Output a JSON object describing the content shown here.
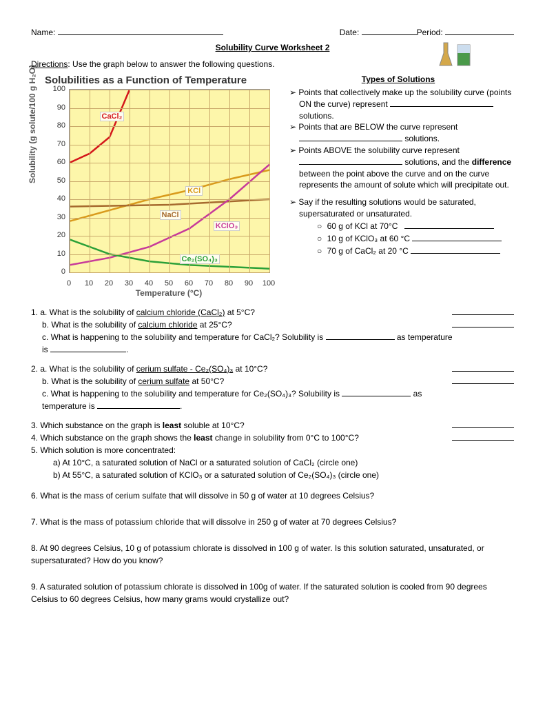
{
  "header": {
    "name_label": "Name:",
    "date_label": "Date:",
    "period_label": "Period:"
  },
  "title": "Solubility Curve Worksheet 2",
  "directions": {
    "label": "Directions",
    "text": ": Use the graph below to answer the following questions."
  },
  "chart": {
    "title": "Solubilities as a Function of Temperature",
    "ylabel": "Solubility (g solute/100 g H₂O)",
    "xlabel": "Temperature (°C)",
    "xlim": [
      0,
      100
    ],
    "ylim": [
      0,
      100
    ],
    "xticks": [
      0,
      10,
      20,
      30,
      40,
      50,
      60,
      70,
      80,
      90,
      100
    ],
    "yticks": [
      0,
      10,
      20,
      30,
      40,
      50,
      60,
      70,
      80,
      90,
      100
    ],
    "bg": "#fdf6aa",
    "grid": "#c9a86a",
    "series": [
      {
        "name": "CaCl2",
        "label": "CaCl₂",
        "color": "#d4161a",
        "width": 2.5,
        "points": [
          [
            0,
            60
          ],
          [
            10,
            65
          ],
          [
            20,
            74
          ],
          [
            30,
            100
          ]
        ],
        "label_pos": [
          15,
          88
        ]
      },
      {
        "name": "KCl",
        "label": "KCl",
        "color": "#d99a1c",
        "width": 2.5,
        "points": [
          [
            0,
            28
          ],
          [
            20,
            34
          ],
          [
            40,
            40
          ],
          [
            60,
            45
          ],
          [
            80,
            51
          ],
          [
            100,
            56
          ]
        ],
        "label_pos": [
          58,
          47
        ]
      },
      {
        "name": "NaCl",
        "label": "NaCl",
        "color": "#a66a2e",
        "width": 2.5,
        "points": [
          [
            0,
            36
          ],
          [
            50,
            37
          ],
          [
            100,
            40
          ]
        ],
        "label_pos": [
          45,
          34
        ]
      },
      {
        "name": "KClO3",
        "label": "KClO₃",
        "color": "#c7399a",
        "width": 2.5,
        "points": [
          [
            0,
            4
          ],
          [
            20,
            8
          ],
          [
            40,
            14
          ],
          [
            60,
            24
          ],
          [
            80,
            40
          ],
          [
            100,
            59
          ]
        ],
        "label_pos": [
          72,
          28
        ]
      },
      {
        "name": "Ce2SO43",
        "label": "Ce₂(SO₄)₃",
        "color": "#2aa038",
        "width": 2.5,
        "points": [
          [
            0,
            18
          ],
          [
            20,
            10
          ],
          [
            40,
            6
          ],
          [
            60,
            4
          ],
          [
            80,
            3
          ],
          [
            100,
            2
          ]
        ],
        "label_pos": [
          55,
          10
        ]
      }
    ]
  },
  "types": {
    "heading": "Types of Solutions",
    "b1a": "Points that collectively make up the solubility curve (points ON the curve) represent ",
    "b1b": " solutions.",
    "b2a": "Points that are BELOW the curve represent ",
    "b2b": " solutions.",
    "b3a": "Points ABOVE the solubility curve represent ",
    "b3b": " solutions, and the ",
    "b3c": "difference",
    "b3d": " between the point above the curve and on the curve represents the amount of solute which will precipitate out.",
    "b4": "Say if the resulting solutions would be saturated, supersaturated or unsaturated.",
    "s1": "60 g of KCl at 70°C",
    "s2": "10 g of KClO₃ at 60 °C",
    "s3": "70 g of CaCl₂ at 20 °C"
  },
  "q": {
    "q1a": "1. a. What is the solubility of ",
    "q1a_u": "calcium chloride (CaCl₂)",
    "q1a2": " at 5°C?",
    "q1b": "b. What is the solubility of ",
    "q1b_u": "calcium chloride",
    "q1b2": " at 25°C?",
    "q1c": "c. What is happening to the solubility and temperature for CaCl₂? Solubility is ",
    "q1c2": " as temperature",
    "q1c3": "is ",
    "q1c4": ".",
    "q2a": "2. a. What is the solubility of ",
    "q2a_u": "cerium sulfate - Ce₂(SO₄)₃",
    "q2a2": " at 10°C?",
    "q2b": "b. What is the solubility of ",
    "q2b_u": "cerium sulfate",
    "q2b2": " at 50°C?",
    "q2c": "c. What is happening to the solubility and temperature for Ce₂(SO₄)₃? Solubility is ",
    "q2c2": " as",
    "q2c3": "temperature is ",
    "q2c4": ".",
    "q3": "3. Which substance on the graph is ",
    "q3b": "least",
    "q3c": " soluble at 10°C?",
    "q4": "4. Which substance on the graph shows the ",
    "q4b": "least",
    "q4c": " change in solubility from 0°C to 100°C?",
    "q5": "5. Which solution is more concentrated:",
    "q5a": "a) At 10°C, a saturated solution of NaCl or a saturated solution of CaCl₂ (circle one)",
    "q5b": "b) At 55°C, a saturated solution of KClO₃ or a saturated solution of Ce₂(SO₄)₃ (circle one)",
    "q6": "6. What is the mass of cerium sulfate that will dissolve in 50 g of water at 10 degrees Celsius?",
    "q7": "7. What is the mass of potassium chloride that will dissolve in 250 g of water at 70 degrees Celsius?",
    "q8": "8. At 90 degrees Celsius, 10 g of potassium chlorate is dissolved in 100 g of water. Is this solution saturated, unsaturated, or supersaturated? How do you know?",
    "q9": "9. A saturated solution of potassium chlorate is dissolved in 100g of water. If the saturated solution is cooled from 90 degrees Celsius to 60 degrees Celsius, how many grams would crystallize out?"
  }
}
